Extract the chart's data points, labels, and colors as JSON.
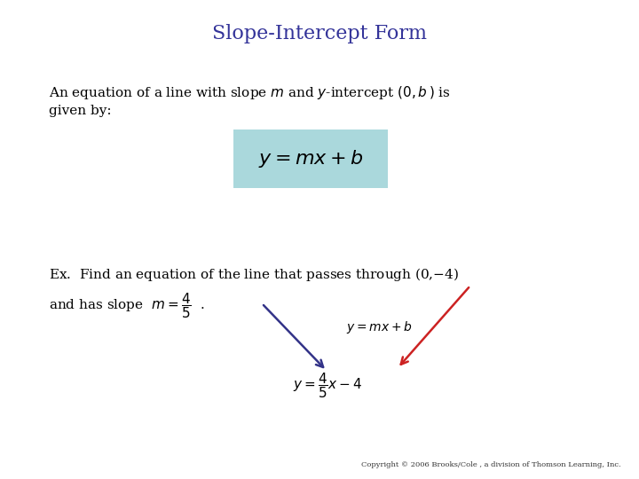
{
  "title": "Slope-Intercept Form",
  "title_color": "#333399",
  "title_fontsize": 16,
  "bg_color": "#ffffff",
  "formula_box_color": "#aad8dc",
  "copyright": "Copyright © 2006 Brooks/Cole , a division of Thomson Learning, Inc.",
  "arrow1_color": "#333388",
  "arrow2_color": "#cc2222",
  "text_fontsize": 11,
  "formula_fontsize": 16,
  "small_label_fontsize": 10,
  "answer_fontsize": 11
}
